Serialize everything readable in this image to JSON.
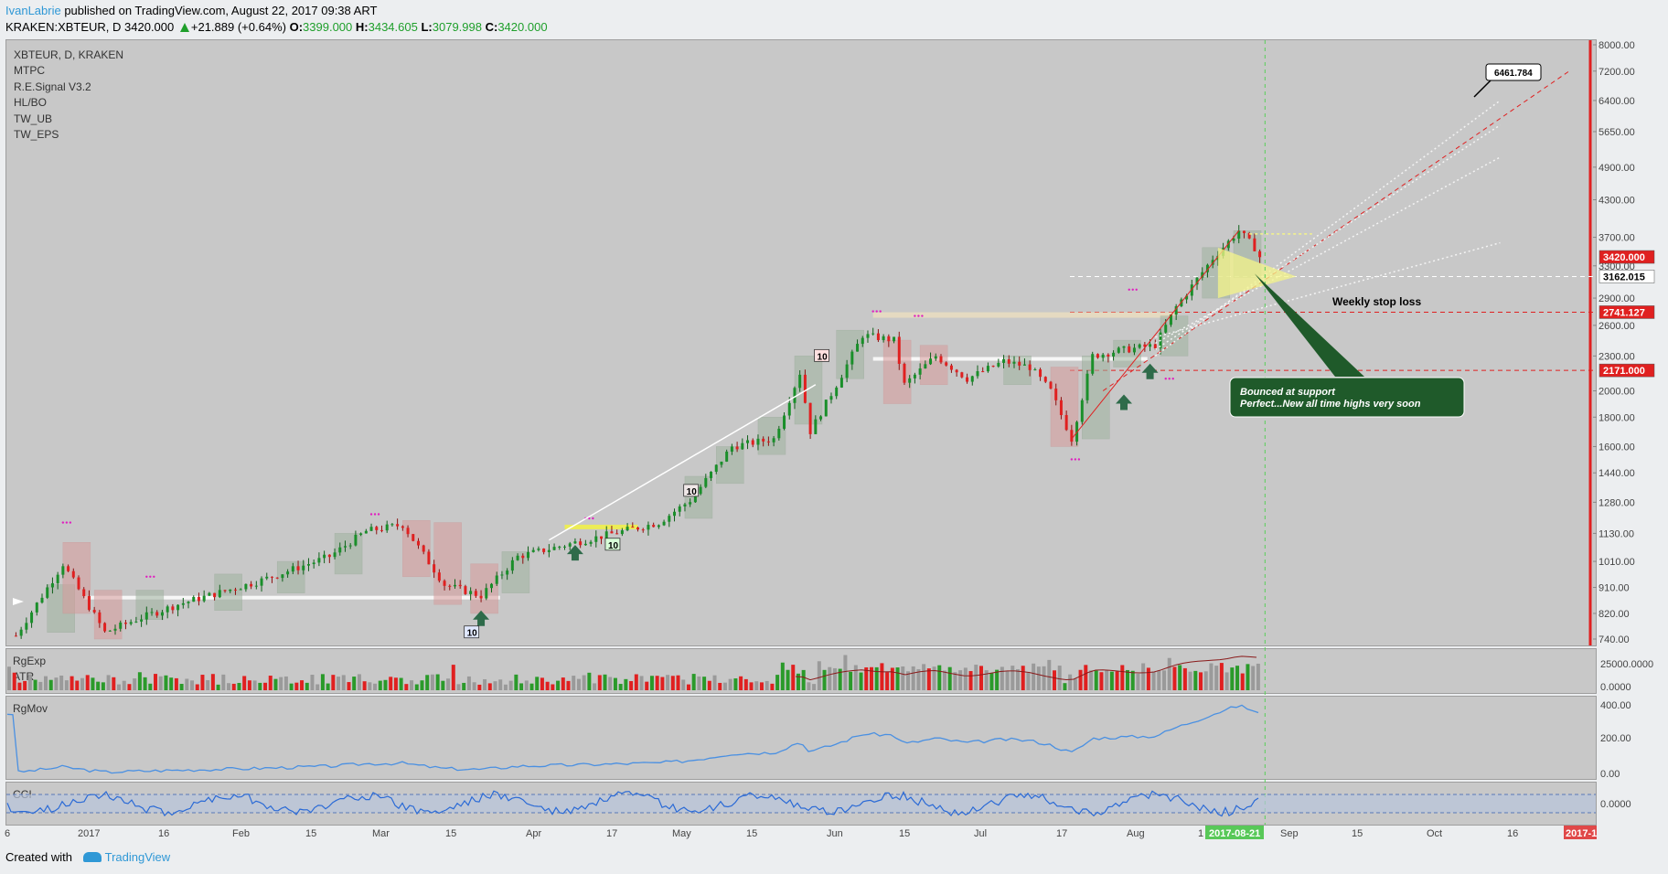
{
  "header": {
    "user": "IvanLabrie",
    "published_text": " published on TradingView.com, August 22, 2017 09:38 ART",
    "symbol_line": "KRAKEN:XBTEUR, D  3420.000",
    "change": "+21.889 (+0.64%)",
    "o_label": "O:",
    "o_value": "3399.000",
    "h_label": "H:",
    "h_value": "3434.605",
    "l_label": "L:",
    "l_value": "3079.998",
    "c_label": "C:",
    "c_value": "3420.000"
  },
  "legend": {
    "title": "XBTEUR, D, KRAKEN",
    "items": [
      "MTPC",
      "R.E.Signal V3.2",
      "HL/BO",
      "TW_UB",
      "TW_EPS"
    ]
  },
  "panes": {
    "rgexp": "RgExp",
    "atr": "ATR",
    "rgmov": "RgMov",
    "cci": "CCI"
  },
  "annotations": {
    "target_label": "6461.784",
    "stop_loss": "Weekly stop loss",
    "callout_line1": "Bounced at support",
    "callout_line2": "Perfect...New all time highs very soon",
    "signal_10": "10",
    "current_date": "2017-08-21",
    "cut_date": "2017-1"
  },
  "footer": {
    "created_with": "Created with",
    "brand": "TradingView"
  },
  "colors": {
    "up": "#1a8f2a",
    "down": "#e02020",
    "pane_bg": "#c8c8c8",
    "accent_blue": "#2f98d6",
    "rgmov_line": "#4a90e2",
    "callout_bg": "#1f5a2a"
  },
  "chart_data": {
    "type": "candlestick",
    "symbol": "KRAKEN:XBTEUR",
    "interval": "D",
    "last": 3420.0,
    "price_axis_ticks": [
      8000,
      7200,
      6400,
      5650,
      4900,
      4300,
      3700,
      3300,
      2900,
      2600,
      2300,
      2000,
      1800,
      1600,
      1440,
      1280,
      1130,
      1010,
      910,
      820,
      740
    ],
    "price_tags": [
      {
        "label": "3420.000",
        "value": 3420.0,
        "color": "#e02020"
      },
      {
        "label": "3162.015",
        "value": 3162.015,
        "color": "#ffffff"
      },
      {
        "label": "2741.127",
        "value": 2741.127,
        "color": "#e02020"
      },
      {
        "label": "2171.000",
        "value": 2171.0,
        "color": "#e02020"
      }
    ],
    "x_ticks": [
      "6",
      "2017",
      "16",
      "Feb",
      "15",
      "Mar",
      "15",
      "Apr",
      "17",
      "May",
      "15",
      "Jun",
      "15",
      "Jul",
      "17",
      "Aug",
      "1",
      "Sep",
      "15",
      "Oct",
      "16"
    ],
    "close_path": [
      {
        "x": "2016-12-26",
        "y": 750
      },
      {
        "x": "2017-01-04",
        "y": 1000
      },
      {
        "x": "2017-01-12",
        "y": 760
      },
      {
        "x": "2017-01-18",
        "y": 800
      },
      {
        "x": "2017-01-26",
        "y": 850
      },
      {
        "x": "2017-02-10",
        "y": 930
      },
      {
        "x": "2017-02-24",
        "y": 1030
      },
      {
        "x": "2017-03-03",
        "y": 1140
      },
      {
        "x": "2017-03-10",
        "y": 1170
      },
      {
        "x": "2017-03-18",
        "y": 920
      },
      {
        "x": "2017-03-25",
        "y": 880
      },
      {
        "x": "2017-04-01",
        "y": 1030
      },
      {
        "x": "2017-04-14",
        "y": 1100
      },
      {
        "x": "2017-04-28",
        "y": 1180
      },
      {
        "x": "2017-05-04",
        "y": 1290
      },
      {
        "x": "2017-05-12",
        "y": 1600
      },
      {
        "x": "2017-05-20",
        "y": 1650
      },
      {
        "x": "2017-05-25",
        "y": 2150
      },
      {
        "x": "2017-05-27",
        "y": 1700
      },
      {
        "x": "2017-06-01",
        "y": 2050
      },
      {
        "x": "2017-06-06",
        "y": 2500
      },
      {
        "x": "2017-06-12",
        "y": 2450
      },
      {
        "x": "2017-06-14",
        "y": 2050
      },
      {
        "x": "2017-06-20",
        "y": 2300
      },
      {
        "x": "2017-06-26",
        "y": 2100
      },
      {
        "x": "2017-07-03",
        "y": 2250
      },
      {
        "x": "2017-07-08",
        "y": 2200
      },
      {
        "x": "2017-07-12",
        "y": 2000
      },
      {
        "x": "2017-07-16",
        "y": 1650
      },
      {
        "x": "2017-07-20",
        "y": 2300
      },
      {
        "x": "2017-07-25",
        "y": 2350
      },
      {
        "x": "2017-08-01",
        "y": 2400
      },
      {
        "x": "2017-08-05",
        "y": 2800
      },
      {
        "x": "2017-08-12",
        "y": 3400
      },
      {
        "x": "2017-08-17",
        "y": 3800
      },
      {
        "x": "2017-08-20",
        "y": 3550
      },
      {
        "x": "2017-08-21",
        "y": 3420
      }
    ],
    "rgexp_ticks": [
      "25000.0000",
      "0.0000"
    ],
    "rgmov_ticks": [
      "400.00",
      "200.00",
      "0.00"
    ],
    "cci_ticks": [
      "0.0000"
    ]
  }
}
